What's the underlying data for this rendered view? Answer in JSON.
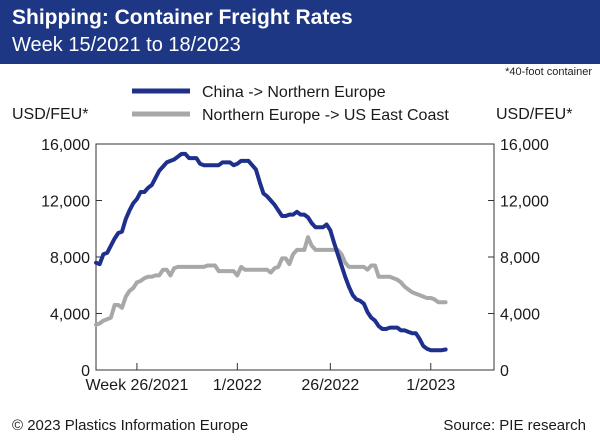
{
  "header": {
    "title": "Shipping: Container Freight Rates",
    "subtitle": "Week 15/2021 to 18/2023"
  },
  "footer": {
    "copyright": "© 2023 Plastics Information Europe",
    "source": "Source: PIE research"
  },
  "colors": {
    "header_bg": "#1d3784",
    "series_china": "#1f2f8c",
    "series_europe": "#a8a8a8",
    "axis": "#333333"
  },
  "chart_data": {
    "type": "line",
    "note": "*40-foot container",
    "ylabel_left": "USD/FEU*",
    "ylabel_right": "USD/FEU*",
    "ylim": [
      0,
      16000
    ],
    "yticks": [
      0,
      4000,
      8000,
      12000,
      16000
    ],
    "ytick_labels": [
      "0",
      "4,000",
      "8,000",
      "12,000",
      "16,000"
    ],
    "xlim": [
      15,
      122
    ],
    "x_unit": "week index (week 1 = week 1/2021)",
    "xticks": [
      {
        "x": 26,
        "label": "Week 26/2021"
      },
      {
        "x": 53,
        "label": "1/2022"
      },
      {
        "x": 78,
        "label": "26/2022"
      },
      {
        "x": 105,
        "label": "1/2023"
      }
    ],
    "grid": false,
    "legend_position": "top",
    "series": [
      {
        "name": "China -> Northern Europe",
        "color": "#1f2f8c",
        "points": [
          [
            15,
            7600
          ],
          [
            16,
            7500
          ],
          [
            17,
            8200
          ],
          [
            18,
            8300
          ],
          [
            19,
            8800
          ],
          [
            20,
            9300
          ],
          [
            21,
            9700
          ],
          [
            22,
            9800
          ],
          [
            23,
            10700
          ],
          [
            24,
            11300
          ],
          [
            25,
            11800
          ],
          [
            26,
            12100
          ],
          [
            27,
            12600
          ],
          [
            28,
            12600
          ],
          [
            29,
            12900
          ],
          [
            30,
            13100
          ],
          [
            31,
            13600
          ],
          [
            32,
            14100
          ],
          [
            33,
            14400
          ],
          [
            34,
            14700
          ],
          [
            35,
            14800
          ],
          [
            36,
            14900
          ],
          [
            37,
            15100
          ],
          [
            38,
            15300
          ],
          [
            39,
            15300
          ],
          [
            40,
            15000
          ],
          [
            41,
            15000
          ],
          [
            42,
            15000
          ],
          [
            43,
            14600
          ],
          [
            44,
            14500
          ],
          [
            45,
            14500
          ],
          [
            46,
            14500
          ],
          [
            47,
            14500
          ],
          [
            48,
            14500
          ],
          [
            49,
            14700
          ],
          [
            50,
            14700
          ],
          [
            51,
            14700
          ],
          [
            52,
            14500
          ],
          [
            53,
            14600
          ],
          [
            54,
            14800
          ],
          [
            55,
            14800
          ],
          [
            56,
            14800
          ],
          [
            57,
            14500
          ],
          [
            58,
            14200
          ],
          [
            59,
            13300
          ],
          [
            60,
            12500
          ],
          [
            61,
            12300
          ],
          [
            62,
            12000
          ],
          [
            63,
            11700
          ],
          [
            64,
            11300
          ],
          [
            65,
            10900
          ],
          [
            66,
            10900
          ],
          [
            67,
            11000
          ],
          [
            68,
            11000
          ],
          [
            69,
            11200
          ],
          [
            70,
            11000
          ],
          [
            71,
            11000
          ],
          [
            72,
            10800
          ],
          [
            73,
            10400
          ],
          [
            74,
            10100
          ],
          [
            75,
            10100
          ],
          [
            76,
            10100
          ],
          [
            77,
            10300
          ],
          [
            78,
            9900
          ],
          [
            79,
            9000
          ],
          [
            80,
            8200
          ],
          [
            81,
            7400
          ],
          [
            82,
            6600
          ],
          [
            83,
            5900
          ],
          [
            84,
            5300
          ],
          [
            85,
            5000
          ],
          [
            86,
            4900
          ],
          [
            87,
            4700
          ],
          [
            88,
            4100
          ],
          [
            89,
            3700
          ],
          [
            90,
            3500
          ],
          [
            91,
            3100
          ],
          [
            92,
            2900
          ],
          [
            93,
            2900
          ],
          [
            94,
            3000
          ],
          [
            95,
            3000
          ],
          [
            96,
            3000
          ],
          [
            97,
            2800
          ],
          [
            98,
            2800
          ],
          [
            99,
            2700
          ],
          [
            100,
            2600
          ],
          [
            101,
            2600
          ],
          [
            102,
            2200
          ],
          [
            103,
            1700
          ],
          [
            104,
            1500
          ],
          [
            105,
            1400
          ],
          [
            106,
            1400
          ],
          [
            107,
            1400
          ],
          [
            108,
            1400
          ],
          [
            109,
            1450
          ]
        ]
      },
      {
        "name": "Northern Europe -> US East Coast",
        "color": "#a8a8a8",
        "points": [
          [
            15,
            3200
          ],
          [
            16,
            3300
          ],
          [
            17,
            3500
          ],
          [
            18,
            3600
          ],
          [
            19,
            3700
          ],
          [
            20,
            4600
          ],
          [
            21,
            4600
          ],
          [
            22,
            4400
          ],
          [
            23,
            5200
          ],
          [
            24,
            5600
          ],
          [
            25,
            5800
          ],
          [
            26,
            6200
          ],
          [
            27,
            6300
          ],
          [
            28,
            6500
          ],
          [
            29,
            6600
          ],
          [
            30,
            6600
          ],
          [
            31,
            6700
          ],
          [
            32,
            6700
          ],
          [
            33,
            7100
          ],
          [
            34,
            7100
          ],
          [
            35,
            6700
          ],
          [
            36,
            7200
          ],
          [
            37,
            7300
          ],
          [
            38,
            7300
          ],
          [
            39,
            7300
          ],
          [
            40,
            7300
          ],
          [
            41,
            7300
          ],
          [
            42,
            7300
          ],
          [
            43,
            7300
          ],
          [
            44,
            7300
          ],
          [
            45,
            7400
          ],
          [
            46,
            7400
          ],
          [
            47,
            7400
          ],
          [
            48,
            7000
          ],
          [
            49,
            7000
          ],
          [
            50,
            7000
          ],
          [
            51,
            7000
          ],
          [
            52,
            7000
          ],
          [
            53,
            6700
          ],
          [
            54,
            7300
          ],
          [
            55,
            7100
          ],
          [
            56,
            7100
          ],
          [
            57,
            7100
          ],
          [
            58,
            7100
          ],
          [
            59,
            7100
          ],
          [
            60,
            7100
          ],
          [
            61,
            7100
          ],
          [
            62,
            6900
          ],
          [
            63,
            7200
          ],
          [
            64,
            7300
          ],
          [
            65,
            7900
          ],
          [
            66,
            7900
          ],
          [
            67,
            7500
          ],
          [
            68,
            8200
          ],
          [
            69,
            8500
          ],
          [
            70,
            8500
          ],
          [
            71,
            8500
          ],
          [
            72,
            9400
          ],
          [
            73,
            8800
          ],
          [
            74,
            8500
          ],
          [
            75,
            8500
          ],
          [
            76,
            8500
          ],
          [
            77,
            8500
          ],
          [
            78,
            8500
          ],
          [
            79,
            8500
          ],
          [
            80,
            8500
          ],
          [
            81,
            8200
          ],
          [
            82,
            7600
          ],
          [
            83,
            7300
          ],
          [
            84,
            7300
          ],
          [
            85,
            7300
          ],
          [
            86,
            7300
          ],
          [
            87,
            7300
          ],
          [
            88,
            7100
          ],
          [
            89,
            7400
          ],
          [
            90,
            7400
          ],
          [
            91,
            6600
          ],
          [
            92,
            6600
          ],
          [
            93,
            6600
          ],
          [
            94,
            6600
          ],
          [
            95,
            6500
          ],
          [
            96,
            6400
          ],
          [
            97,
            6200
          ],
          [
            98,
            5900
          ],
          [
            99,
            5700
          ],
          [
            100,
            5500
          ],
          [
            101,
            5400
          ],
          [
            102,
            5300
          ],
          [
            103,
            5200
          ],
          [
            104,
            5100
          ],
          [
            105,
            5100
          ],
          [
            106,
            5000
          ],
          [
            107,
            4800
          ],
          [
            108,
            4800
          ],
          [
            109,
            4800
          ]
        ]
      }
    ]
  }
}
